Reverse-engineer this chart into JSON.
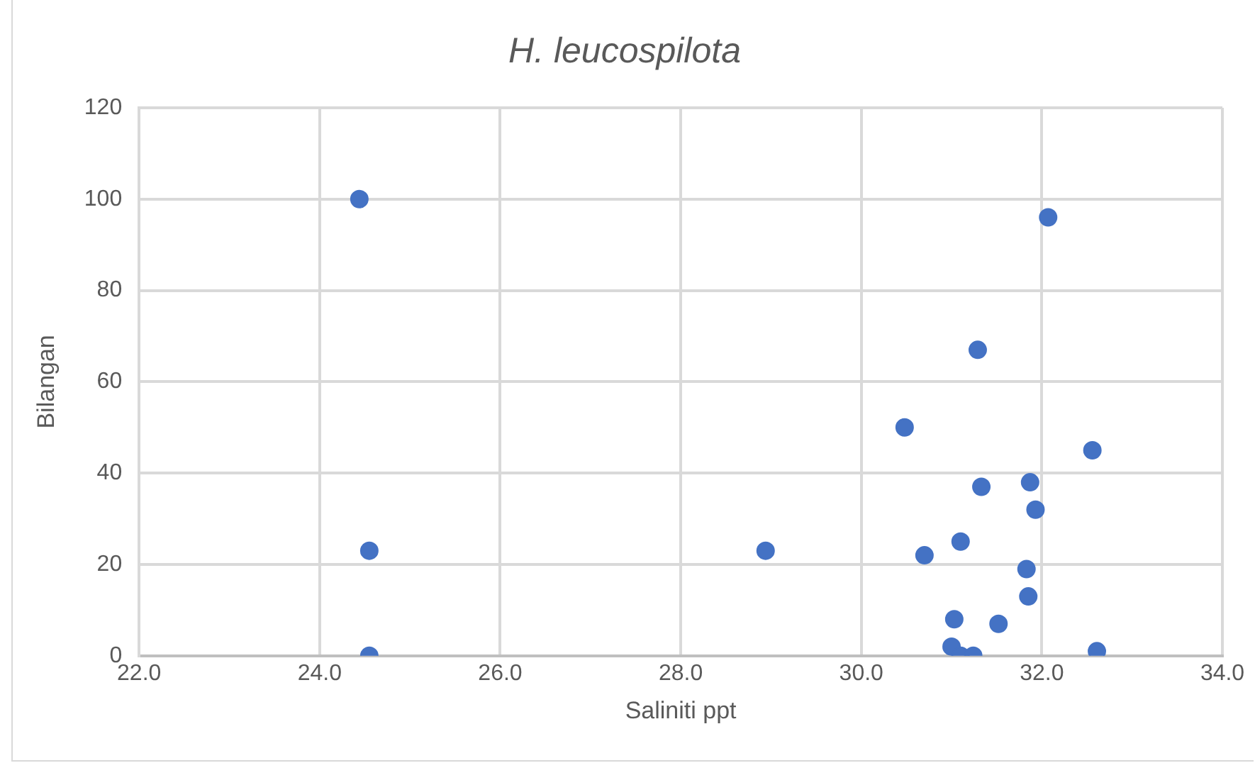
{
  "chart_data": {
    "type": "scatter",
    "title": "H. leucospilota",
    "xlabel": "Saliniti ppt",
    "ylabel": "Bilangan",
    "x": [
      24.44,
      24.55,
      24.55,
      28.94,
      30.48,
      30.7,
      31.03,
      31.0,
      31.1,
      31.1,
      31.24,
      31.29,
      31.33,
      31.52,
      31.83,
      31.85,
      31.87,
      31.93,
      32.07,
      32.56,
      32.61
    ],
    "series": [
      {
        "color": "#4472c4",
        "values": [
          100,
          23,
          0,
          23,
          50,
          22,
          8,
          2,
          0,
          25,
          0,
          67,
          37,
          7,
          19,
          13,
          38,
          32,
          96,
          45,
          1
        ]
      }
    ],
    "xlim": [
      22,
      34
    ],
    "xticks": [
      {
        "value": 22,
        "label": "22.0"
      },
      {
        "value": 24,
        "label": "24.0"
      },
      {
        "value": 26,
        "label": "26.0"
      },
      {
        "value": 28,
        "label": "28.0"
      },
      {
        "value": 30,
        "label": "30.0"
      },
      {
        "value": 32,
        "label": "32.0"
      },
      {
        "value": 34,
        "label": "34.0"
      }
    ],
    "ylim": [
      0,
      120
    ],
    "yticks": [
      0,
      20,
      40,
      60,
      80,
      100,
      120
    ],
    "grid": true,
    "legend": false,
    "marker": "circle"
  }
}
